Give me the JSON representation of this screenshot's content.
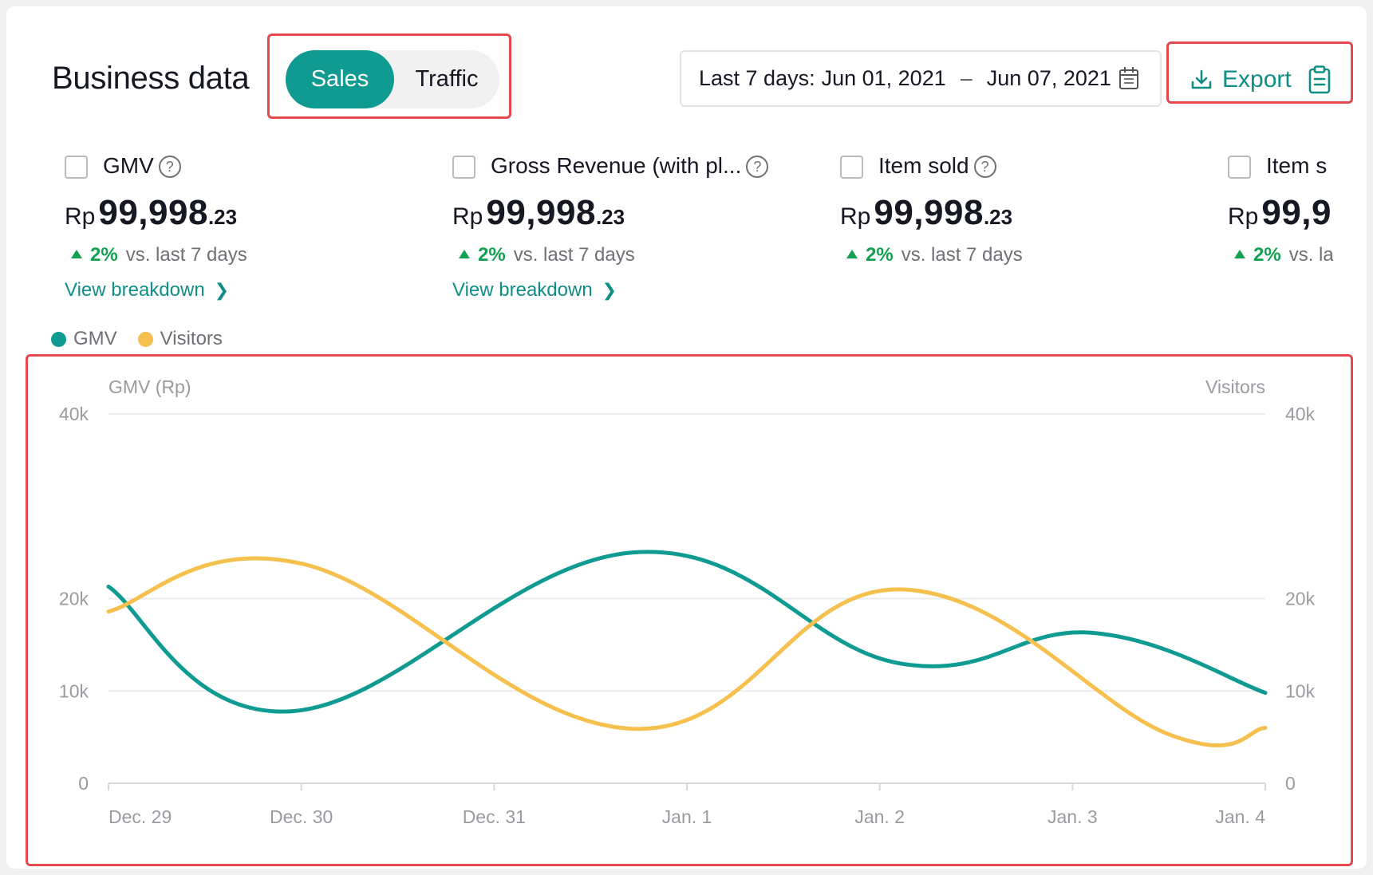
{
  "page": {
    "title": "Business data"
  },
  "toggle": {
    "options": [
      "Sales",
      "Traffic"
    ],
    "selected": "Sales"
  },
  "date_range": {
    "label": "Last 7 days:",
    "start": "Jun 01, 2021",
    "separator": "–",
    "end": "Jun 07, 2021"
  },
  "export": {
    "label": "Export"
  },
  "metrics": [
    {
      "label": "GMV",
      "has_help": true,
      "currency": "Rp",
      "value_main": "99,998",
      "value_decimal": ".23",
      "change": "2%",
      "change_text": "vs. last 7 days",
      "link": "View breakdown"
    },
    {
      "label": "Gross Revenue (with pl...",
      "has_help": true,
      "currency": "Rp",
      "value_main": "99,998",
      "value_decimal": ".23",
      "change": "2%",
      "change_text": "vs. last 7 days",
      "link": "View breakdown"
    },
    {
      "label": "Item sold",
      "has_help": true,
      "currency": "Rp",
      "value_main": "99,998",
      "value_decimal": ".23",
      "change": "2%",
      "change_text": "vs. last 7 days",
      "link": ""
    },
    {
      "label": "Item s",
      "has_help": false,
      "currency": "Rp",
      "value_main": "99,9",
      "value_decimal": "",
      "change": "2%",
      "change_text": "vs. la",
      "link": ""
    }
  ],
  "legend": [
    {
      "name": "GMV",
      "color": "#0f9b92"
    },
    {
      "name": "Visitors",
      "color": "#f5c04e"
    }
  ],
  "colors": {
    "accent": "#0f9b92",
    "positive": "#12a150",
    "highlight_box": "#e5484d"
  },
  "chart_data": {
    "type": "line",
    "x": [
      "Dec. 29",
      "Dec. 30",
      "Dec. 31",
      "Jan. 1",
      "Jan. 2",
      "Jan. 3",
      "Jan. 4"
    ],
    "ylabel_left": "GMV (Rp)",
    "ylabel_right": "Visitors",
    "yticks_left": [
      "0",
      "10k",
      "20k",
      "40k"
    ],
    "yticks_right": [
      "0",
      "10k",
      "20k",
      "40k"
    ],
    "ylim": [
      0,
      40000
    ],
    "grid": true,
    "series": [
      {
        "name": "GMV",
        "color": "#0f9b92",
        "points": [
          [
            0.0,
            21300
          ],
          [
            0.95,
            7800
          ],
          [
            2.72,
            25000
          ],
          [
            4.1,
            13000
          ],
          [
            5.1,
            16300
          ],
          [
            6.0,
            9800
          ]
        ]
      },
      {
        "name": "Visitors",
        "color": "#f5c04e",
        "points": [
          [
            0.0,
            18600
          ],
          [
            1.0,
            23800
          ],
          [
            2.72,
            5900
          ],
          [
            4.1,
            21000
          ],
          [
            5.5,
            5300
          ],
          [
            6.0,
            6000
          ]
        ]
      }
    ]
  }
}
